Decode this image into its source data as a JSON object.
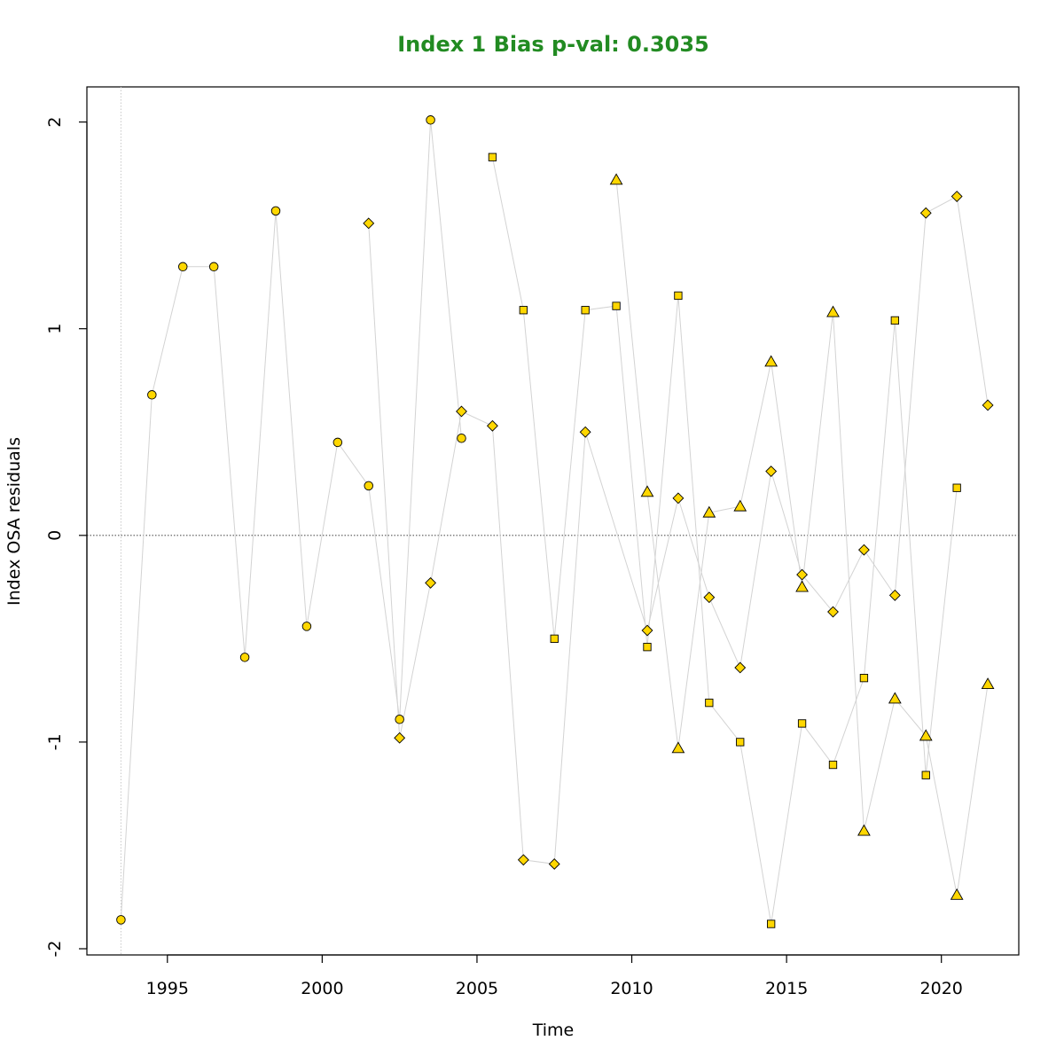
{
  "chart_data": {
    "type": "scatter",
    "title": "Index 1 Bias p-val: 0.3035",
    "title_color": "#228B22",
    "xlabel": "Time",
    "ylabel": "Index OSA residuals",
    "xlim": [
      1992.4,
      2022.5
    ],
    "ylim": [
      -2.03,
      2.17
    ],
    "x_ticks": [
      1995,
      2000,
      2005,
      2010,
      2015,
      2020
    ],
    "y_ticks": [
      -2,
      -1,
      0,
      1,
      2
    ],
    "x_tick_labels": [
      "1995",
      "2000",
      "2005",
      "2010",
      "2015",
      "2020"
    ],
    "y_tick_labels": [
      "-2",
      "-1",
      "0",
      "1",
      "2"
    ],
    "reference_line_y": 0,
    "reference_line_x": 1993.5,
    "marker_fill": "#FFD700",
    "marker_stroke": "#000000",
    "line_color": "#D3D3D3",
    "series": [
      {
        "marker": "circle",
        "points": [
          [
            1993.5,
            -1.86
          ],
          [
            1994.5,
            0.68
          ],
          [
            1995.5,
            1.3
          ],
          [
            1996.5,
            1.3
          ],
          [
            1997.5,
            -0.59
          ],
          [
            1998.5,
            1.57
          ],
          [
            1999.5,
            -0.44
          ],
          [
            2000.5,
            0.45
          ],
          [
            2001.5,
            0.24
          ],
          [
            2002.5,
            -0.89
          ],
          [
            2003.5,
            2.01
          ],
          [
            2004.5,
            0.47
          ]
        ]
      },
      {
        "marker": "diamond",
        "points": [
          [
            2001.5,
            1.51
          ],
          [
            2002.5,
            -0.98
          ],
          [
            2003.5,
            -0.23
          ],
          [
            2004.5,
            0.6
          ],
          [
            2005.5,
            0.53
          ],
          [
            2006.5,
            -1.57
          ],
          [
            2007.5,
            -1.59
          ],
          [
            2008.5,
            0.5
          ],
          [
            2010.5,
            -0.46
          ],
          [
            2011.5,
            0.18
          ],
          [
            2012.5,
            -0.3
          ],
          [
            2013.5,
            -0.64
          ],
          [
            2014.5,
            0.31
          ],
          [
            2015.5,
            -0.19
          ],
          [
            2016.5,
            -0.37
          ],
          [
            2017.5,
            -0.07
          ],
          [
            2018.5,
            -0.29
          ],
          [
            2019.5,
            1.56
          ],
          [
            2020.5,
            1.64
          ],
          [
            2021.5,
            0.63
          ]
        ]
      },
      {
        "marker": "square",
        "points": [
          [
            2005.5,
            1.83
          ],
          [
            2006.5,
            1.09
          ],
          [
            2007.5,
            -0.5
          ],
          [
            2008.5,
            1.09
          ],
          [
            2009.5,
            1.11
          ],
          [
            2010.5,
            -0.54
          ],
          [
            2011.5,
            1.16
          ],
          [
            2012.5,
            -0.81
          ],
          [
            2013.5,
            -1.0
          ],
          [
            2014.5,
            -1.88
          ],
          [
            2015.5,
            -0.91
          ],
          [
            2016.5,
            -1.11
          ],
          [
            2017.5,
            -0.69
          ],
          [
            2018.5,
            1.04
          ],
          [
            2019.5,
            -1.16
          ],
          [
            2020.5,
            0.23
          ]
        ]
      },
      {
        "marker": "triangle",
        "points": [
          [
            2009.5,
            1.72
          ],
          [
            2010.5,
            0.21
          ],
          [
            2011.5,
            -1.03
          ],
          [
            2012.5,
            0.11
          ],
          [
            2013.5,
            0.14
          ],
          [
            2014.5,
            0.84
          ],
          [
            2015.5,
            -0.25
          ],
          [
            2016.5,
            1.08
          ],
          [
            2017.5,
            -1.43
          ],
          [
            2018.5,
            -0.79
          ],
          [
            2019.5,
            -0.97
          ],
          [
            2020.5,
            -1.74
          ],
          [
            2021.5,
            -0.72
          ]
        ]
      }
    ]
  }
}
